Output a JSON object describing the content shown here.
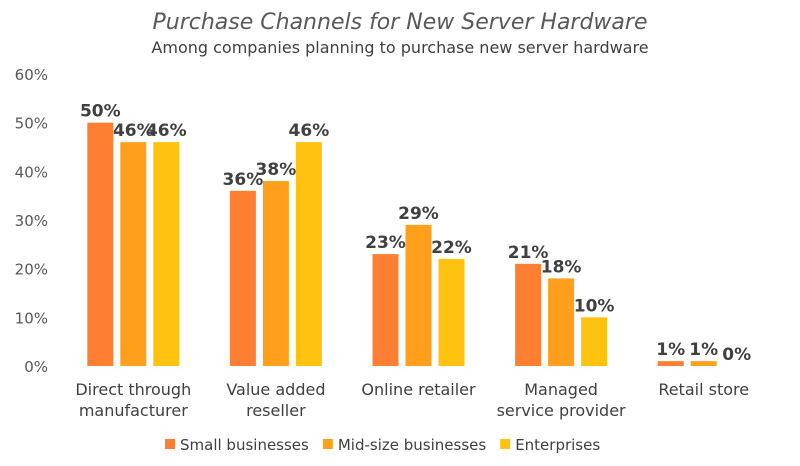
{
  "chart_data": {
    "type": "bar",
    "title": "Purchase Channels for New Server Hardware",
    "subtitle": "Among companies planning to purchase new server hardware",
    "categories": [
      [
        "Direct through",
        "manufacturer"
      ],
      [
        "Value added",
        "reseller"
      ],
      [
        "Online retailer"
      ],
      [
        "Managed",
        "service provider"
      ],
      [
        "Retail store"
      ]
    ],
    "series": [
      {
        "name": "Small businesses",
        "color": "#FF7F32",
        "values": [
          50,
          36,
          23,
          21,
          1
        ]
      },
      {
        "name": "Mid-size businesses",
        "color": "#FF9F1C",
        "values": [
          46,
          38,
          29,
          18,
          1
        ]
      },
      {
        "name": "Enterprises",
        "color": "#FFC20E",
        "values": [
          46,
          46,
          22,
          10,
          0
        ]
      }
    ],
    "ylim": [
      0,
      60
    ],
    "yticks": [
      "0%",
      "10%",
      "20%",
      "30%",
      "40%",
      "50%",
      "60%"
    ],
    "grid": false,
    "legend": "bottom",
    "xlabel": "",
    "ylabel": ""
  }
}
